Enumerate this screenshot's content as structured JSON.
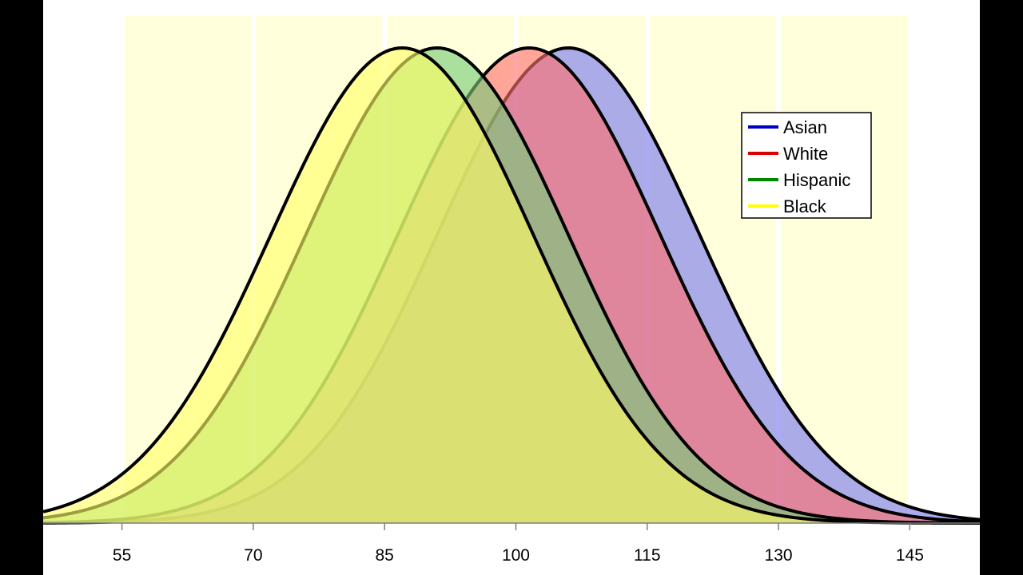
{
  "chart_data": {
    "type": "area",
    "title": "",
    "xlabel": "",
    "ylabel": "",
    "xlim": [
      46,
      153
    ],
    "xticks": [
      55,
      70,
      85,
      100,
      115,
      130,
      145
    ],
    "grid": false,
    "legend_position": "top-right",
    "shaded_bands": [
      {
        "from": 55,
        "to": 70
      },
      {
        "from": 70,
        "to": 85
      },
      {
        "from": 85,
        "to": 100
      },
      {
        "from": 100,
        "to": 115
      },
      {
        "from": 115,
        "to": 130
      },
      {
        "from": 130,
        "to": 145
      }
    ],
    "series": [
      {
        "name": "Asian",
        "color": "#0000CC",
        "fill": "#7777EE",
        "mean": 106,
        "sd": 15
      },
      {
        "name": "White",
        "color": "#DD0000",
        "fill": "#FF6F6F",
        "mean": 101.5,
        "sd": 15
      },
      {
        "name": "Hispanic",
        "color": "#008800",
        "fill": "#77CC77",
        "mean": 91,
        "sd": 15
      },
      {
        "name": "Black",
        "color": "#FFFF00",
        "fill": "#FFFF66",
        "mean": 87,
        "sd": 15
      }
    ]
  }
}
